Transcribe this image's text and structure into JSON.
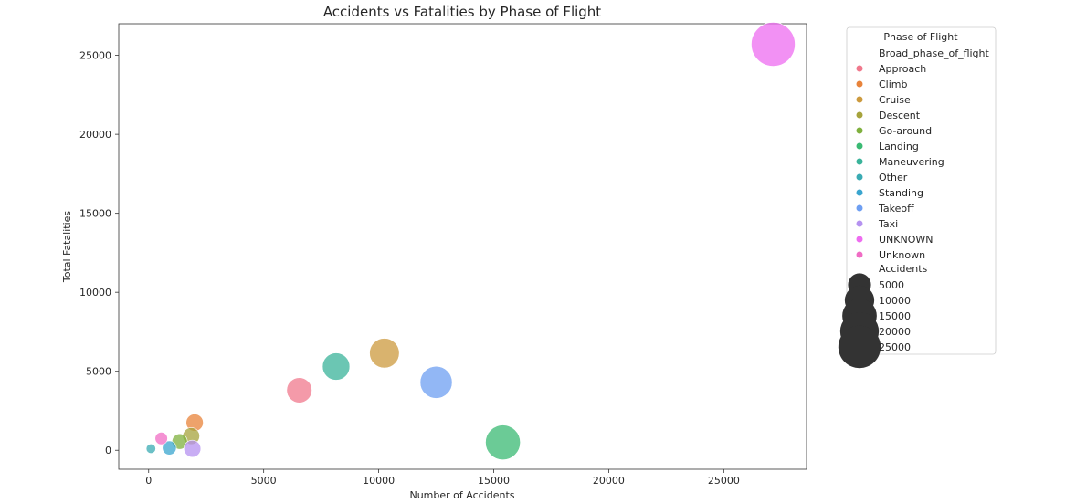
{
  "chart_data": {
    "type": "scatter",
    "title": "Accidents vs Fatalities by Phase of Flight",
    "xlabel": "Number of Accidents",
    "ylabel": "Total Fatalities",
    "xlim": [
      -1300,
      28600
    ],
    "ylim": [
      -1200,
      27000
    ],
    "xticks": [
      0,
      5000,
      10000,
      15000,
      20000,
      25000
    ],
    "yticks": [
      0,
      5000,
      10000,
      15000,
      20000,
      25000
    ],
    "grid": false,
    "points": [
      {
        "phase": "Approach",
        "x": 6550,
        "y": 3800,
        "color": "#f0788c"
      },
      {
        "phase": "Climb",
        "x": 2000,
        "y": 1750,
        "color": "#e8833a"
      },
      {
        "phase": "Cruise",
        "x": 10250,
        "y": 6150,
        "color": "#cc9a3e"
      },
      {
        "phase": "Descent",
        "x": 1850,
        "y": 900,
        "color": "#a6a33c"
      },
      {
        "phase": "Go-around",
        "x": 1350,
        "y": 550,
        "color": "#7fb03e"
      },
      {
        "phase": "Landing",
        "x": 15400,
        "y": 500,
        "color": "#3aba73"
      },
      {
        "phase": "Maneuvering",
        "x": 8150,
        "y": 5300,
        "color": "#3ab39a"
      },
      {
        "phase": "Other",
        "x": 100,
        "y": 100,
        "color": "#3aabb3"
      },
      {
        "phase": "Standing",
        "x": 900,
        "y": 150,
        "color": "#3aa5cf"
      },
      {
        "phase": "Takeoff",
        "x": 12500,
        "y": 4300,
        "color": "#6e9ff2"
      },
      {
        "phase": "Taxi",
        "x": 1900,
        "y": 100,
        "color": "#b592f0"
      },
      {
        "phase": "UNKNOWN",
        "x": 27150,
        "y": 25700,
        "color": "#ee6cf0"
      },
      {
        "phase": "Unknown",
        "x": 550,
        "y": 750,
        "color": "#f06cc4"
      }
    ],
    "legend": {
      "title": "Phase of Flight",
      "hue_header": "Broad_phase_of_flight",
      "size_header": "Accidents",
      "size_values": [
        5000,
        10000,
        15000,
        20000,
        25000
      ],
      "size_color": "#333333",
      "placement": "outside-right"
    }
  }
}
